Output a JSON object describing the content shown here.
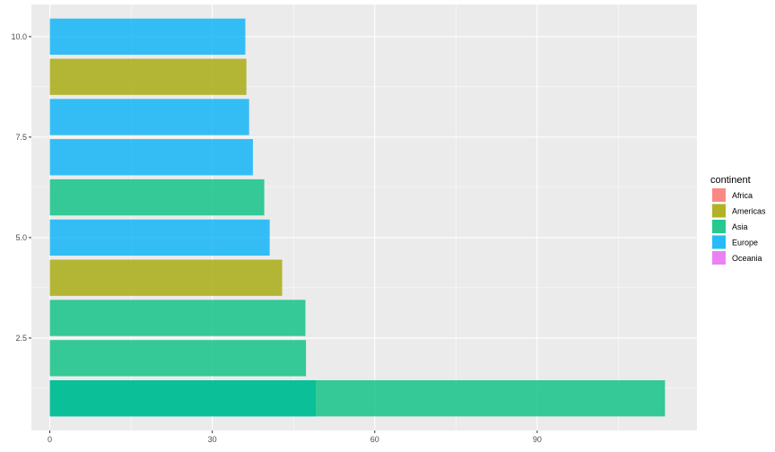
{
  "chart_data": {
    "type": "bar",
    "orientation": "horizontal",
    "stacked_overlapping": true,
    "xlim": [
      -3.4,
      119.5
    ],
    "ylim": [
      0.2,
      10.8
    ],
    "x_ticks": [
      0,
      30,
      60,
      90
    ],
    "y_ticks": [
      2.5,
      5.0,
      7.5,
      10.0
    ],
    "x_tick_labels": [
      "0",
      "30",
      "60",
      "90"
    ],
    "y_tick_labels": [
      "2.5",
      "5.0",
      "7.5",
      "10.0"
    ],
    "grid": true,
    "legend": {
      "title": "continent",
      "placement": "right",
      "entries": [
        {
          "name": "Africa",
          "color": "#F8766D"
        },
        {
          "name": "Americas",
          "color": "#A3A500"
        },
        {
          "name": "Asia",
          "color": "#00BF7D"
        },
        {
          "name": "Europe",
          "color": "#00B0F6"
        },
        {
          "name": "Oceania",
          "color": "#E76BF3"
        }
      ]
    },
    "bars": [
      {
        "y": 1,
        "segments": [
          {
            "continent": "Europe",
            "value": 49.1
          },
          {
            "continent": "Asia",
            "value": 113.6
          }
        ]
      },
      {
        "y": 2,
        "segments": [
          {
            "continent": "Asia",
            "value": 47.3
          }
        ]
      },
      {
        "y": 3,
        "segments": [
          {
            "continent": "Asia",
            "value": 47.2
          }
        ]
      },
      {
        "y": 4,
        "segments": [
          {
            "continent": "Americas",
            "value": 42.9
          }
        ]
      },
      {
        "y": 5,
        "segments": [
          {
            "continent": "Europe",
            "value": 40.6
          }
        ]
      },
      {
        "y": 6,
        "segments": [
          {
            "continent": "Asia",
            "value": 39.6
          }
        ]
      },
      {
        "y": 7,
        "segments": [
          {
            "continent": "Europe",
            "value": 37.5
          }
        ]
      },
      {
        "y": 8,
        "segments": [
          {
            "continent": "Europe",
            "value": 36.8
          }
        ]
      },
      {
        "y": 9,
        "segments": [
          {
            "continent": "Americas",
            "value": 36.3
          }
        ]
      },
      {
        "y": 10,
        "segments": [
          {
            "continent": "Europe",
            "value": 36.1
          }
        ]
      }
    ]
  }
}
